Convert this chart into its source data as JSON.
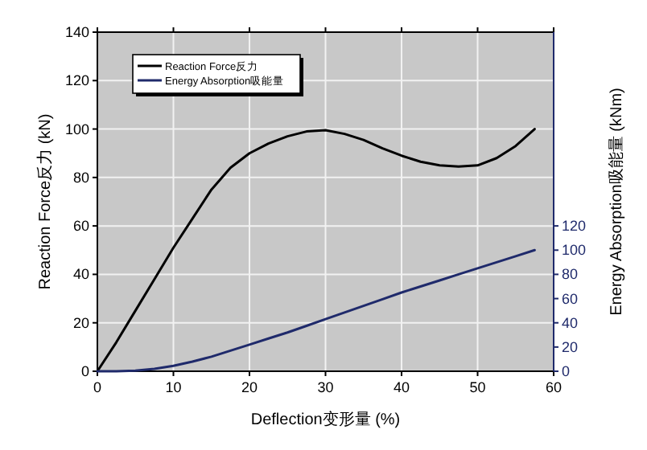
{
  "chart_data": {
    "type": "line",
    "xlabel": "Deflection变形量 (%)",
    "ylabel": "Reaction Force反力 (kN)",
    "y2label": "Energy Absorption吸能量 (kNm)",
    "x": [
      0,
      2.5,
      5,
      7.5,
      10,
      12.5,
      15,
      17.5,
      20,
      22.5,
      25,
      27.5,
      30,
      32.5,
      35,
      37.5,
      40,
      42.5,
      45,
      47.5,
      50,
      52.5,
      55,
      57.5
    ],
    "series": [
      {
        "name": "Reaction Force反力",
        "color": "#000000",
        "values": [
          0,
          12,
          25,
          38,
          51,
          63,
          75,
          84,
          90,
          94,
          97,
          99,
          99.5,
          98,
          95.5,
          92,
          89,
          86.5,
          85,
          84.5,
          85,
          88,
          93,
          100
        ]
      },
      {
        "name": "Energy Absorption吸能量",
        "color": "#1f2a6b",
        "axis": "y2",
        "values": [
          0,
          0,
          0.5,
          2,
          4.5,
          8,
          12,
          17,
          22,
          27,
          32,
          37.5,
          43,
          48.5,
          54,
          59.5,
          65,
          70,
          75,
          80,
          85,
          90,
          95,
          100
        ]
      }
    ],
    "xlim": [
      0,
      60
    ],
    "xticks": [
      0,
      10,
      20,
      30,
      40,
      50,
      60
    ],
    "ylim": [
      0,
      140
    ],
    "yticks": [
      0,
      20,
      40,
      60,
      80,
      100,
      120,
      140
    ],
    "y2lim": [
      0,
      280
    ],
    "y2ticks": [
      0,
      20,
      40,
      60,
      80,
      100,
      120
    ],
    "grid": true,
    "legend": "top left"
  }
}
